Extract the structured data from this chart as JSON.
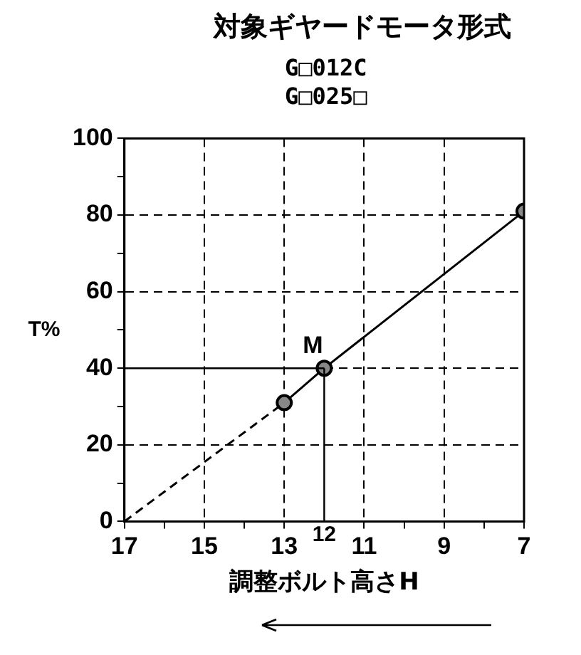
{
  "chart_data": {
    "type": "line",
    "title": "対象ギヤードモータ形式",
    "subtitle": "G□012C\nG□025□",
    "xlabel": "調整ボルト高さH",
    "ylabel": "T%",
    "xlim": [
      17,
      7
    ],
    "xticks": [
      17,
      {
        "value": 16,
        "label": null
      },
      15,
      {
        "value": 14,
        "label": null
      },
      13,
      11,
      {
        "value": 10,
        "label": null
      },
      9,
      {
        "value": 8,
        "label": null
      },
      7
    ],
    "ylim": [
      0,
      100
    ],
    "yticks": [
      0,
      {
        "value": 10,
        "label": null
      },
      20,
      {
        "value": 30,
        "label": null
      },
      40,
      {
        "value": 50,
        "label": null
      },
      60,
      {
        "value": 70,
        "label": null
      },
      80,
      {
        "value": 90,
        "label": null
      },
      100
    ],
    "grid": true,
    "legend": false,
    "series": [
      {
        "x": [
          17,
          13
        ],
        "values": [
          0,
          31
        ],
        "color": "#000000",
        "line_style": "dashed"
      },
      {
        "x": [
          13,
          12,
          7
        ],
        "values": [
          31,
          40,
          81
        ],
        "color": "#000000",
        "line_style": "solid",
        "marker": "circle"
      }
    ],
    "ref_lines": [
      {
        "axis": "x",
        "value": 12,
        "label": "12"
      },
      {
        "axis": "y",
        "value": 40
      }
    ],
    "annotations": [
      {
        "text": "M",
        "x": 12,
        "y": 40
      }
    ]
  }
}
